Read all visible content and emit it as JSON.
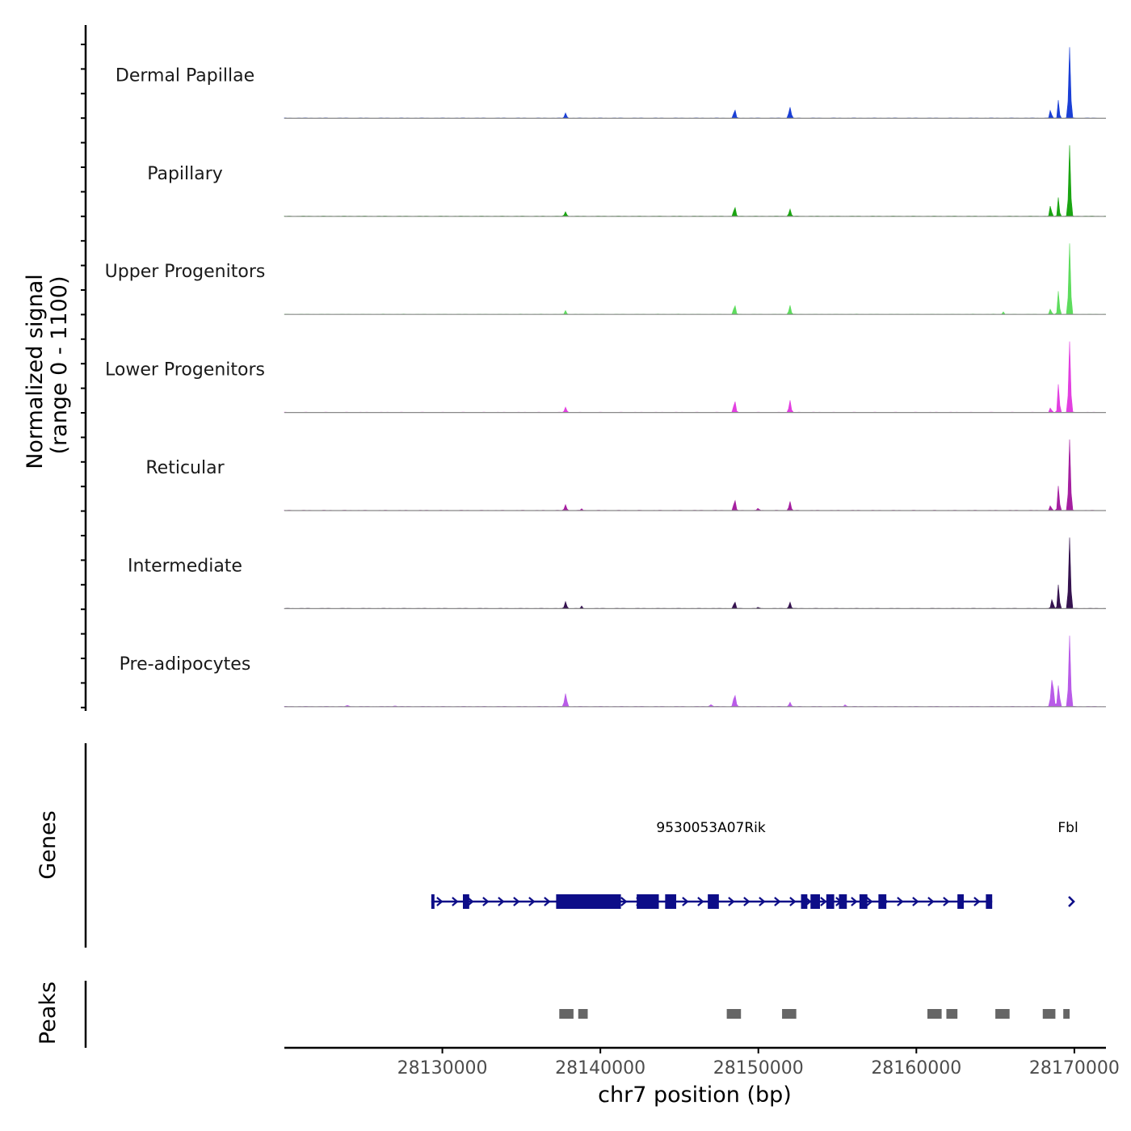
{
  "chart_data": {
    "type": "area",
    "title": "",
    "xlabel": "chr7 position (bp)",
    "ylabel_line1": "Normalized signal",
    "ylabel_line2": "(range 0 - 1100)",
    "y_range": [
      0,
      1100
    ],
    "x_range": [
      28120000,
      28172000
    ],
    "x_ticks": [
      28130000,
      28140000,
      28150000,
      28160000,
      28170000
    ],
    "x_tick_labels": [
      "28130000",
      "28140000",
      "28150000",
      "28160000",
      "28170000"
    ],
    "baseline_color": "#888888",
    "tracks": [
      {
        "name": "Dermal Papillae",
        "color": "#1a3fd6",
        "peaks": [
          [
            28137800,
            80,
            60
          ],
          [
            28148500,
            140,
            60
          ],
          [
            28152000,
            170,
            70
          ],
          [
            28168500,
            140,
            50
          ],
          [
            28169000,
            300,
            45
          ],
          [
            28169700,
            1100,
            60
          ]
        ]
      },
      {
        "name": "Papillary",
        "color": "#1aa512",
        "peaks": [
          [
            28137800,
            70,
            60
          ],
          [
            28148500,
            150,
            60
          ],
          [
            28152000,
            110,
            60
          ],
          [
            28168500,
            180,
            50
          ],
          [
            28169000,
            310,
            45
          ],
          [
            28169700,
            1100,
            60
          ]
        ]
      },
      {
        "name": "Upper Progenitors",
        "color": "#5ddc5d",
        "peaks": [
          [
            28137800,
            60,
            50
          ],
          [
            28148500,
            150,
            60
          ],
          [
            28152000,
            140,
            60
          ],
          [
            28165500,
            40,
            50
          ],
          [
            28168500,
            90,
            50
          ],
          [
            28169000,
            380,
            50
          ],
          [
            28169700,
            1100,
            60
          ]
        ]
      },
      {
        "name": "Lower Progenitors",
        "color": "#e23fe0",
        "peaks": [
          [
            28137800,
            80,
            60
          ],
          [
            28148500,
            190,
            60
          ],
          [
            28152000,
            190,
            60
          ],
          [
            28168500,
            80,
            50
          ],
          [
            28169000,
            460,
            50
          ],
          [
            28169700,
            1100,
            60
          ]
        ]
      },
      {
        "name": "Reticular",
        "color": "#a51fa0",
        "peaks": [
          [
            28137800,
            90,
            60
          ],
          [
            28138800,
            30,
            40
          ],
          [
            28148500,
            170,
            60
          ],
          [
            28150000,
            40,
            50
          ],
          [
            28152000,
            140,
            60
          ],
          [
            28168500,
            80,
            50
          ],
          [
            28169000,
            400,
            50
          ],
          [
            28169700,
            1100,
            60
          ]
        ]
      },
      {
        "name": "Intermediate",
        "color": "#35124f",
        "peaks": [
          [
            28137800,
            110,
            60
          ],
          [
            28138800,
            40,
            40
          ],
          [
            28148500,
            110,
            60
          ],
          [
            28150000,
            30,
            40
          ],
          [
            28152000,
            100,
            60
          ],
          [
            28168600,
            150,
            60
          ],
          [
            28169000,
            390,
            50
          ],
          [
            28169700,
            1100,
            60
          ]
        ]
      },
      {
        "name": "Pre-adipocytes",
        "color": "#b95be8",
        "peaks": [
          [
            28124000,
            15,
            80
          ],
          [
            28127000,
            12,
            80
          ],
          [
            28137800,
            200,
            70
          ],
          [
            28147000,
            30,
            80
          ],
          [
            28148500,
            190,
            70
          ],
          [
            28152000,
            70,
            60
          ],
          [
            28155500,
            30,
            60
          ],
          [
            28168600,
            430,
            80
          ],
          [
            28169000,
            340,
            60
          ],
          [
            28169700,
            1100,
            60
          ]
        ]
      }
    ],
    "genes_label": "Genes",
    "gene_color": "#0d0d88",
    "genes": [
      {
        "name": "9530053A07Rik",
        "start": 28129300,
        "end": 28164800,
        "label_pos": 28147000,
        "strand": "+",
        "exons": [
          [
            28129300,
            28129500
          ],
          [
            28131300,
            28131700
          ],
          [
            28137200,
            28141300
          ],
          [
            28142300,
            28143700
          ],
          [
            28144100,
            28144800
          ],
          [
            28146800,
            28147500
          ],
          [
            28152700,
            28153100
          ],
          [
            28153300,
            28153900
          ],
          [
            28154300,
            28154800
          ],
          [
            28155100,
            28155600
          ],
          [
            28156400,
            28156900
          ],
          [
            28157600,
            28158100
          ],
          [
            28162600,
            28163000
          ],
          [
            28164400,
            28164800
          ]
        ]
      },
      {
        "name": "Fbl",
        "start": 28169700,
        "end": 28170000,
        "label_pos": 28169600,
        "strand": "+",
        "exons": []
      }
    ],
    "peaks_label": "Peaks",
    "peak_color": "#666666",
    "peak_regions": [
      [
        28137400,
        28138300
      ],
      [
        28138600,
        28139200
      ],
      [
        28148000,
        28148900
      ],
      [
        28151500,
        28152400
      ],
      [
        28160700,
        28161600
      ],
      [
        28161900,
        28162600
      ],
      [
        28165000,
        28165900
      ],
      [
        28168000,
        28168800
      ],
      [
        28169300,
        28169700
      ]
    ]
  }
}
